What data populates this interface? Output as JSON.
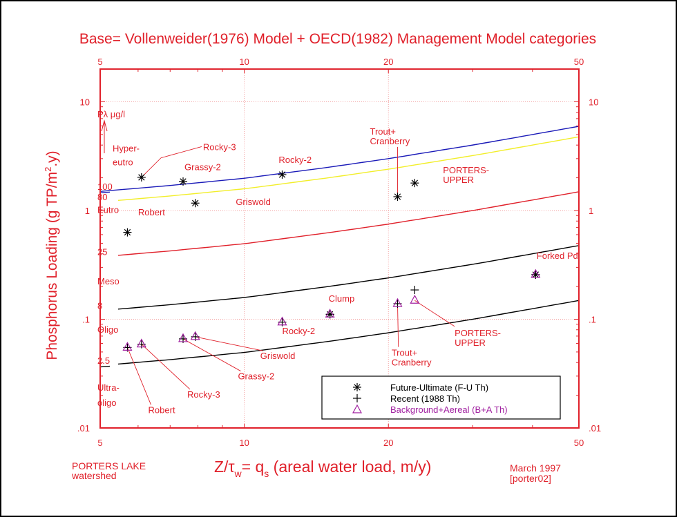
{
  "chart_data": {
    "type": "scatter",
    "title": "Base= Vollenweider(1976) Model + OECD(1982) Management Model categories",
    "xlabel": "z/τw= qs (areal water load, m/y)",
    "xlabel_parts": {
      "main": "Z/τ",
      "sub1": "w",
      "eq": "= q",
      "sub2": "s",
      "rest": " (areal water load, m/y)"
    },
    "ylabel": "Phosphorus Loading (g TP/m2.y)",
    "ylabel_parts": {
      "pre": "Phosphorus Loading (g TP/m",
      "sup": "2",
      "post": ".y)"
    },
    "x_scale": "log",
    "y_scale": "log",
    "xlim": [
      5,
      50
    ],
    "ylim": [
      0.01,
      20
    ],
    "x_ticks": [
      {
        "v": 5,
        "label": "5"
      },
      {
        "v": 10,
        "label": "10"
      },
      {
        "v": 20,
        "label": "20"
      },
      {
        "v": 50,
        "label": "50"
      }
    ],
    "y_ticks": [
      {
        "v": 10,
        "label": "10"
      },
      {
        "v": 1,
        "label": "1"
      },
      {
        "v": 0.1,
        "label": ".1"
      },
      {
        "v": 0.01,
        "label": ".01"
      }
    ],
    "grid": "dotted at major ticks",
    "reference_curves": {
      "base_qs": [
        5,
        7,
        10,
        15,
        20,
        30,
        40,
        50
      ],
      "base_load_100": [
        1.5,
        1.7,
        1.98,
        2.5,
        3.0,
        4.0,
        5.0,
        5.95
      ],
      "curves": [
        {
          "label": "100",
          "factor": 1.0,
          "color": "#1a1ab8"
        },
        {
          "label": "80",
          "factor": 0.8,
          "color": "#f2ee2a"
        },
        {
          "label": "25",
          "factor": 0.25,
          "color": "#e0202a"
        },
        {
          "label": "8",
          "factor": 0.08,
          "color": "#000000"
        },
        {
          "label": "2.5",
          "factor": 0.025,
          "color": "#000000"
        }
      ]
    },
    "zone_labels": [
      {
        "text": "Pλ  μg/l",
        "y": 7.2
      },
      {
        "text": "Hyper-",
        "y": 3.5
      },
      {
        "text": "eutro",
        "y": 2.6
      },
      {
        "text": "Eutro",
        "y": 0.95
      },
      {
        "text": "Meso",
        "y": 0.21
      },
      {
        "text": "Oligo",
        "y": 0.075
      },
      {
        "text": "Ultra-",
        "y": 0.022
      },
      {
        "text": "oligo",
        "y": 0.016
      }
    ],
    "series": [
      {
        "name": "Future-Ultimate (F-U Th)",
        "marker": "asterisk",
        "color": "#000000",
        "points": [
          {
            "lake": "Robert",
            "x": 5.7,
            "y": 0.63
          },
          {
            "lake": "Rocky-3",
            "x": 6.1,
            "y": 2.02
          },
          {
            "lake": "Grassy-2",
            "x": 7.45,
            "y": 1.85
          },
          {
            "lake": "Griswold",
            "x": 7.9,
            "y": 1.17
          },
          {
            "lake": "Rocky-2",
            "x": 12.0,
            "y": 2.14
          },
          {
            "lake": "Clump",
            "x": 15.1,
            "y": 0.111
          },
          {
            "lake": "Trout+Cranberry",
            "x": 20.9,
            "y": 1.34
          },
          {
            "lake": "PORTERS-UPPER",
            "x": 22.7,
            "y": 1.79
          },
          {
            "lake": "Forked Pd",
            "x": 40.6,
            "y": 0.257
          }
        ]
      },
      {
        "name": "Recent (1988 Th)",
        "marker": "plus",
        "color": "#000000",
        "points": [
          {
            "lake": "Robert",
            "x": 5.7,
            "y": 0.055
          },
          {
            "lake": "Rocky-3",
            "x": 6.1,
            "y": 0.059
          },
          {
            "lake": "Grassy-2",
            "x": 7.45,
            "y": 0.066
          },
          {
            "lake": "Griswold",
            "x": 7.9,
            "y": 0.069
          },
          {
            "lake": "Rocky-2",
            "x": 12.0,
            "y": 0.094
          },
          {
            "lake": "Clump",
            "x": 15.1,
            "y": 0.111
          },
          {
            "lake": "Trout+Cranberry",
            "x": 20.9,
            "y": 0.139
          },
          {
            "lake": "PORTERS-UPPER",
            "x": 22.7,
            "y": 0.186
          },
          {
            "lake": "Forked Pd",
            "x": 40.6,
            "y": 0.257
          }
        ]
      },
      {
        "name": "Background+Aereal (B+A Th)",
        "marker": "triangle",
        "color": "#a020a0",
        "points": [
          {
            "lake": "Robert",
            "x": 5.7,
            "y": 0.055
          },
          {
            "lake": "Rocky-3",
            "x": 6.1,
            "y": 0.059
          },
          {
            "lake": "Grassy-2",
            "x": 7.45,
            "y": 0.066
          },
          {
            "lake": "Griswold",
            "x": 7.9,
            "y": 0.069
          },
          {
            "lake": "Rocky-2",
            "x": 12.0,
            "y": 0.094
          },
          {
            "lake": "Clump",
            "x": 15.1,
            "y": 0.111
          },
          {
            "lake": "Trout+Cranberry",
            "x": 20.9,
            "y": 0.139
          },
          {
            "lake": "PORTERS-UPPER",
            "x": 22.7,
            "y": 0.149
          },
          {
            "lake": "Forked Pd",
            "x": 40.6,
            "y": 0.257
          }
        ]
      }
    ],
    "annotations": [
      {
        "lines": [
          "Rocky-3"
        ],
        "tx": 8.2,
        "ty": 3.6,
        "lx": 6.1,
        "ly": 2.02,
        "leader": true
      },
      {
        "lines": [
          "Grassy-2"
        ],
        "tx": 7.5,
        "ty": 2.35,
        "leader": false
      },
      {
        "lines": [
          "Griswold"
        ],
        "tx": 9.6,
        "ty": 1.12,
        "leader": false
      },
      {
        "lines": [
          "Robert"
        ],
        "tx": 6.0,
        "ty": 0.9,
        "leader": false
      },
      {
        "lines": [
          "Rocky-2"
        ],
        "tx": 11.8,
        "ty": 2.75,
        "leader": false
      },
      {
        "lines": [
          "Trout+",
          "Cranberry"
        ],
        "tx": 18.3,
        "ty": 5.0,
        "lx": 20.9,
        "ly": 1.34,
        "leader": true
      },
      {
        "lines": [
          "PORTERS-",
          "UPPER"
        ],
        "tx": 26.0,
        "ty": 2.2,
        "leader": false
      },
      {
        "lines": [
          "Forked Pd"
        ],
        "tx": 40.8,
        "ty": 0.36,
        "leader": false
      },
      {
        "lines": [
          "Clump"
        ],
        "tx": 15.0,
        "ty": 0.145,
        "leader": false
      },
      {
        "lines": [
          "Rocky-2"
        ],
        "tx": 12.0,
        "ty": 0.073,
        "leader": false
      },
      {
        "lines": [
          "Trout+",
          "Cranberry"
        ],
        "tx": 20.3,
        "ty": 0.046,
        "lx": 20.9,
        "ly": 0.139,
        "leader": true
      },
      {
        "lines": [
          "PORTERS-",
          "UPPER"
        ],
        "tx": 27.5,
        "ty": 0.07,
        "lx": 22.7,
        "ly": 0.149,
        "leader": true
      },
      {
        "lines": [
          "Griswold"
        ],
        "tx": 10.8,
        "ty": 0.043,
        "lx": 7.9,
        "ly": 0.069,
        "leader": true
      },
      {
        "lines": [
          "Grassy-2"
        ],
        "tx": 9.7,
        "ty": 0.028,
        "lx": 7.45,
        "ly": 0.066,
        "leader": true
      },
      {
        "lines": [
          "Rocky-3"
        ],
        "tx": 7.6,
        "ty": 0.019,
        "lx": 6.1,
        "ly": 0.059,
        "leader": true
      },
      {
        "lines": [
          "Robert"
        ],
        "tx": 6.3,
        "ty": 0.0137,
        "lx": 5.7,
        "ly": 0.055,
        "leader": true
      }
    ],
    "legend": {
      "placement": "bottom-right",
      "entries": [
        {
          "symbol": "✳",
          "label": "Future-Ultimate (F-U Th)",
          "color": "#000000"
        },
        {
          "symbol": "+",
          "label": "Recent (1988 Th)",
          "color": "#000000"
        },
        {
          "symbol": "△",
          "label": "Background+Aereal (B+A Th)",
          "color": "#a020a0"
        }
      ]
    }
  },
  "footer": {
    "left_line1": "PORTERS LAKE",
    "left_line2": "watershed",
    "right_line1": "March 1997",
    "right_line2": "[porter02]"
  },
  "colors": {
    "axis": "#e0202a",
    "text": "#e0202a",
    "grid": "#f08080"
  }
}
